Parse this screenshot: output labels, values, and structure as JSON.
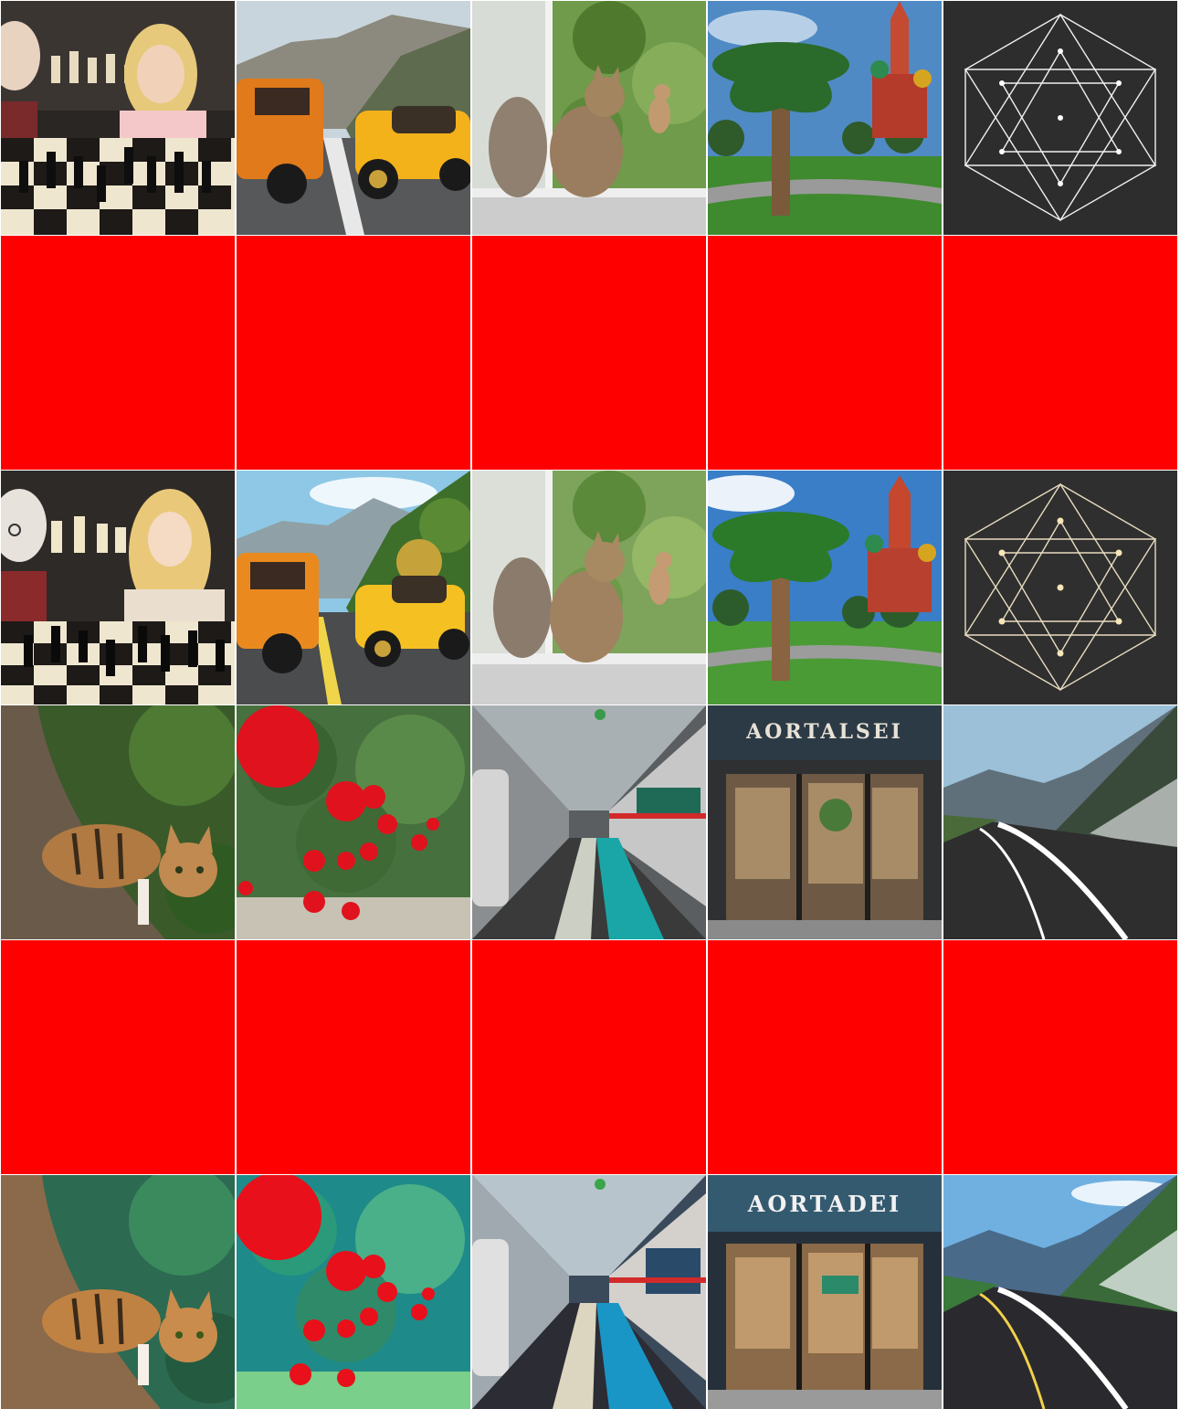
{
  "grid": {
    "rows": 6,
    "cols": 5,
    "mask_color": "#ff0000"
  },
  "tiles": [
    {
      "row": 1,
      "col": 1,
      "icon": "chess-players-photo",
      "style": "photo"
    },
    {
      "row": 1,
      "col": 2,
      "icon": "mountain-road-cars-photo",
      "style": "photo"
    },
    {
      "row": 1,
      "col": 3,
      "icon": "cat-window-photo",
      "style": "photo"
    },
    {
      "row": 1,
      "col": 4,
      "icon": "palm-cathedral-photo",
      "style": "photo"
    },
    {
      "row": 1,
      "col": 5,
      "icon": "geometric-line-art",
      "style": "photo"
    },
    {
      "row": 2,
      "icon": "red-mask-row"
    },
    {
      "row": 3,
      "col": 1,
      "icon": "chess-players-anime",
      "style": "anime"
    },
    {
      "row": 3,
      "col": 2,
      "icon": "mountain-road-cars-anime",
      "style": "anime"
    },
    {
      "row": 3,
      "col": 3,
      "icon": "cat-window-anime",
      "style": "anime"
    },
    {
      "row": 3,
      "col": 4,
      "icon": "palm-cathedral-anime",
      "style": "anime"
    },
    {
      "row": 3,
      "col": 5,
      "icon": "geometric-line-art-anime",
      "style": "anime"
    },
    {
      "row": 4,
      "col": 1,
      "icon": "tabby-cat-tree-photo",
      "style": "photo"
    },
    {
      "row": 4,
      "col": 2,
      "icon": "red-balloons-forest-photo",
      "style": "photo"
    },
    {
      "row": 4,
      "col": 3,
      "icon": "subway-tunnel-photo",
      "style": "photo"
    },
    {
      "row": 4,
      "col": 4,
      "icon": "storefront-photo",
      "style": "photo",
      "sign_text": "AORTALSEI"
    },
    {
      "row": 4,
      "col": 5,
      "icon": "mountain-highway-photo",
      "style": "photo"
    },
    {
      "row": 5,
      "icon": "red-mask-row"
    },
    {
      "row": 6,
      "col": 1,
      "icon": "tabby-cat-tree-anime",
      "style": "anime"
    },
    {
      "row": 6,
      "col": 2,
      "icon": "red-balloons-forest-anime",
      "style": "anime"
    },
    {
      "row": 6,
      "col": 3,
      "icon": "subway-tunnel-anime",
      "style": "anime"
    },
    {
      "row": 6,
      "col": 4,
      "icon": "storefront-anime",
      "style": "anime",
      "sign_text": "AORTADEI"
    },
    {
      "row": 6,
      "col": 5,
      "icon": "mountain-highway-anime",
      "style": "anime"
    }
  ],
  "storefront_photo": {
    "sign_text": "AORTALSEI"
  },
  "storefront_anime": {
    "sign_text": "AORTADEI"
  }
}
